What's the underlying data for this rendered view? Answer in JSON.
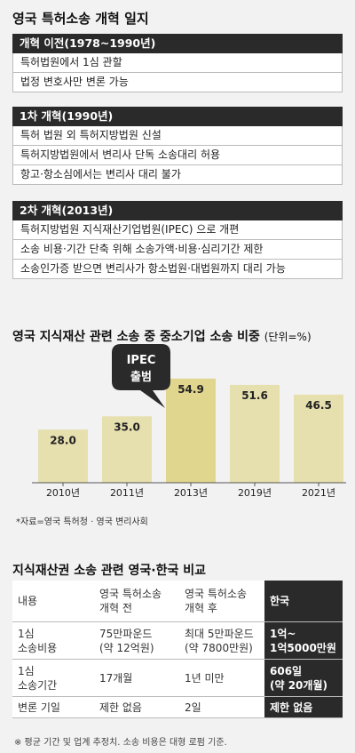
{
  "history": {
    "title": "영국 특허소송 개혁 일지",
    "sections": [
      {
        "header": "개혁 이전(1978~1990년)",
        "items": [
          "특허법원에서 1심 관할",
          "법정 변호사만 변론 가능"
        ]
      },
      {
        "header": "1차 개혁(1990년)",
        "items": [
          "특허 법원 외 특허지방법원 신설",
          "특허지방법원에서 변리사 단독 소송대리 허용",
          "항고·항소심에서는 변리사 대리 불가"
        ]
      },
      {
        "header": "2차 개혁(2013년)",
        "items": [
          "특허지방법원 지식재산기업법원(IPEC) 으로 개편",
          "소송 비용·기간 단축 위해 소송가액·비용·심리기간 제한",
          "소송인가증 받으면 변리사가 항소법원·대법원까지 대리 가능"
        ]
      }
    ]
  },
  "chart_data": {
    "type": "bar",
    "title": "영국 지식재산 관련 소송 중 중소기업 소송 비중",
    "unit_label": "(단위=%)",
    "categories": [
      "2010년",
      "2011년",
      "2013년",
      "2019년",
      "2021년"
    ],
    "values": [
      28.0,
      35.0,
      54.9,
      51.6,
      46.5
    ],
    "value_labels": [
      "28.0",
      "35.0",
      "54.9",
      "51.6",
      "46.5"
    ],
    "ylim": [
      0,
      60
    ],
    "bar_color": "#e6dfae",
    "highlight_index": 2,
    "highlight_color": "#e0d68e",
    "callout": {
      "line1": "IPEC",
      "line2": "출범"
    },
    "source": "*자료=영국 특허청 · 영국 변리사회"
  },
  "comparison": {
    "title": "지식재산권 소송 관련 영국·한국 비교",
    "header": [
      "내용",
      "영국 특허소송\n개혁 전",
      "영국 특허소송\n개혁 후",
      "한국"
    ],
    "rows": [
      [
        "1심\n소송비용",
        "75만파운드\n(약 12억원)",
        "최대 5만파운드\n(약 7800만원)",
        "1억~\n1억5000만원"
      ],
      [
        "1심\n소송기간",
        "17개월",
        "1년 미만",
        "606일\n(약 20개월)"
      ],
      [
        "변론 기일",
        "제한 없음",
        "2일",
        "제한 없음"
      ]
    ],
    "footnote": "※ 평균 기간 및 업계 추정치. 소송 비용은 대형 로펌 기준."
  }
}
